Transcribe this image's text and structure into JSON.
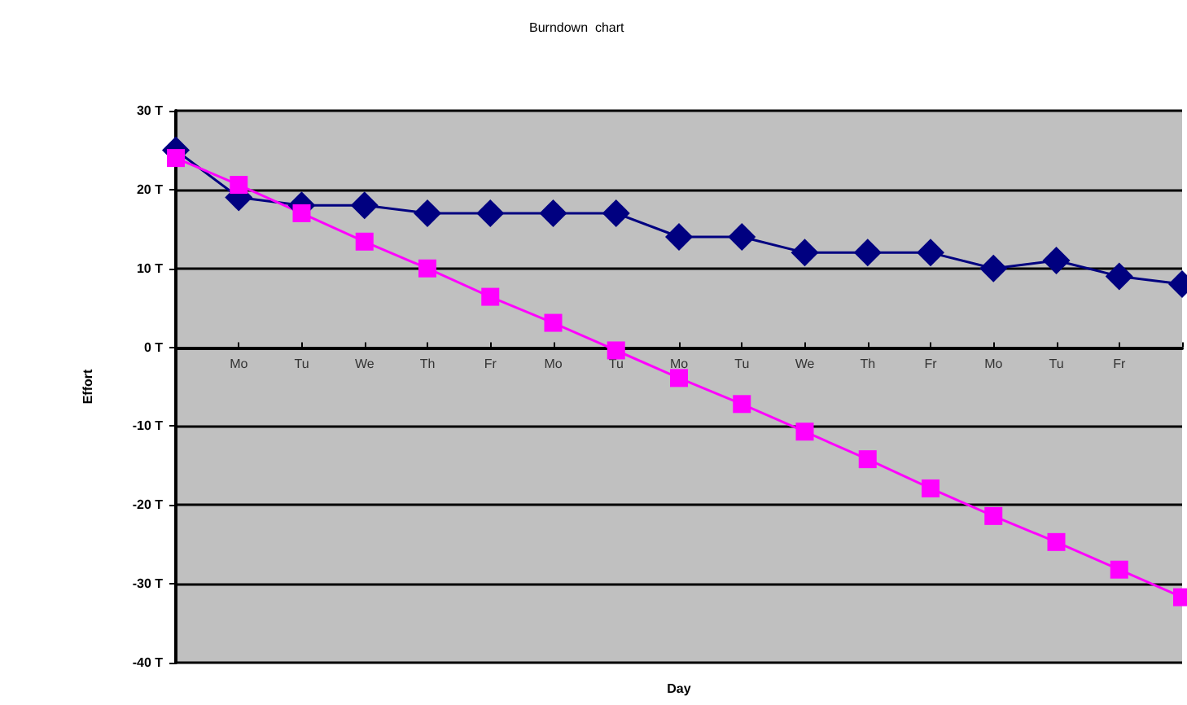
{
  "chart_data": {
    "type": "line",
    "title": "Burndown  chart",
    "xlabel": "Day",
    "ylabel": "Effort",
    "categories": [
      null,
      "Mo",
      "Tu",
      "We",
      "Th",
      "Fr",
      "Mo",
      "Tu",
      "Mo",
      "Tu",
      "We",
      "Th",
      "Fr",
      "Mo",
      "Tu",
      "Fr",
      null
    ],
    "series": [
      {
        "color": "#000080",
        "marker": "diamond",
        "values": [
          25,
          19,
          18,
          18,
          17,
          17,
          17,
          17,
          14,
          14,
          12,
          12,
          12,
          10,
          11,
          9,
          8
        ]
      },
      {
        "color": "#ff00ff",
        "marker": "square",
        "values": [
          24,
          20.6,
          17,
          13.4,
          10,
          6.4,
          3.1,
          -0.4,
          -3.9,
          -7.2,
          -10.7,
          -14.2,
          -17.9,
          -21.4,
          -24.7,
          -28.2,
          -31.7
        ]
      }
    ],
    "ylim": [
      -40,
      30
    ],
    "yticks": [
      {
        "value": -40,
        "label": "-40 T"
      },
      {
        "value": -30,
        "label": "-30 T"
      },
      {
        "value": -20,
        "label": "-20 T"
      },
      {
        "value": -10,
        "label": "-10 T"
      },
      {
        "value": 0,
        "label": "0 T"
      },
      {
        "value": 10,
        "label": "10 T"
      },
      {
        "value": 20,
        "label": "20 T"
      },
      {
        "value": 30,
        "label": "30 T"
      }
    ],
    "grid": "y",
    "line_style": "solid"
  }
}
